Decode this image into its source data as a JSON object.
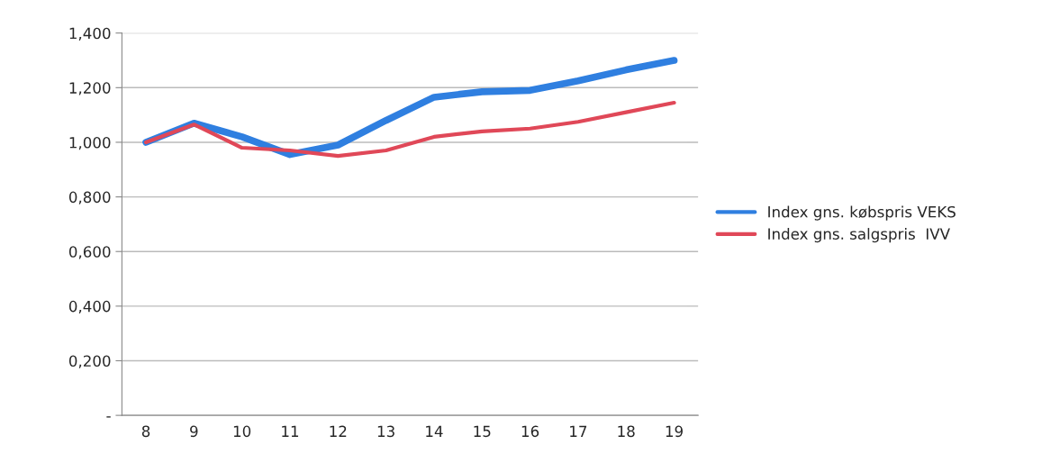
{
  "chart_data": {
    "type": "line",
    "categories": [
      "8",
      "9",
      "10",
      "11",
      "12",
      "13",
      "14",
      "15",
      "16",
      "17",
      "18",
      "19"
    ],
    "series": [
      {
        "name": "Index gns. købspris VEKS",
        "color": "#2f7fe0",
        "values": [
          1.0,
          1.07,
          1.02,
          0.955,
          0.99,
          1.08,
          1.165,
          1.185,
          1.19,
          1.225,
          1.265,
          1.3
        ]
      },
      {
        "name": "Index gns. salgspris  IVV",
        "color": "#e04858",
        "values": [
          1.0,
          1.065,
          0.98,
          0.97,
          0.95,
          0.97,
          1.02,
          1.04,
          1.05,
          1.075,
          1.11,
          1.145
        ]
      }
    ],
    "ylim": [
      0,
      1.4
    ],
    "yticks": [
      {
        "value": 0,
        "label": "-"
      },
      {
        "value": 0.2,
        "label": "0,200"
      },
      {
        "value": 0.4,
        "label": "0,400"
      },
      {
        "value": 0.6,
        "label": "0,600"
      },
      {
        "value": 0.8,
        "label": "0,800"
      },
      {
        "value": 1.0,
        "label": "1,000"
      },
      {
        "value": 1.2,
        "label": "1,200"
      },
      {
        "value": 1.4,
        "label": "1,400"
      }
    ],
    "grid": "y",
    "legend": "right",
    "marker": "none",
    "line_style": "solid"
  }
}
